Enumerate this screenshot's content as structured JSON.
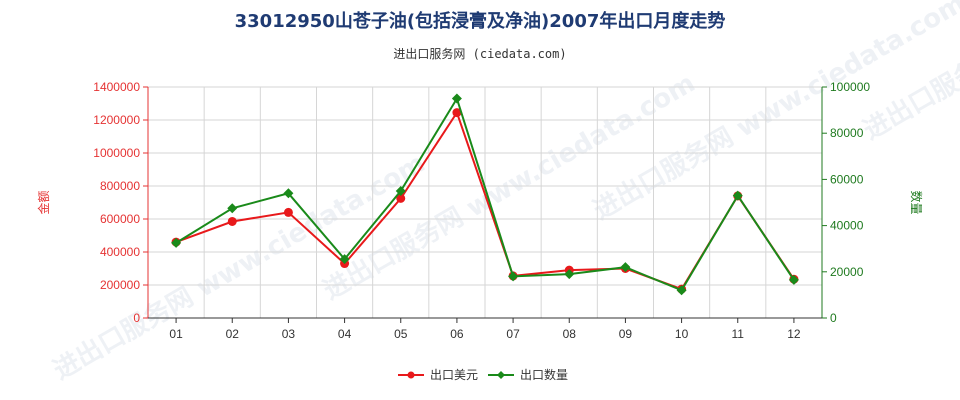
{
  "chart_data": {
    "type": "line",
    "title": "33012950山苍子油(包括浸膏及净油)2007年出口月度走势",
    "subtitle": "进出口服务网 (ciedata.com)",
    "watermark": "进出口服务网 www.ciedata.com",
    "categories": [
      "01",
      "02",
      "03",
      "04",
      "05",
      "06",
      "07",
      "08",
      "09",
      "10",
      "11",
      "12"
    ],
    "y_left": {
      "label": "金额",
      "min": 0,
      "max": 1400000,
      "ticks": [
        0,
        200000,
        400000,
        600000,
        800000,
        1000000,
        1200000,
        1400000
      ],
      "color": "#e53333"
    },
    "y_right": {
      "label": "数量",
      "min": 0,
      "max": 100000,
      "ticks": [
        0,
        20000,
        40000,
        60000,
        80000,
        100000
      ],
      "color": "#1f7a1f"
    },
    "grid": true,
    "legend_position": "bottom",
    "series": [
      {
        "name": "出口美元",
        "axis": "left",
        "color": "#e8191b",
        "marker": "circle",
        "values": [
          460000,
          585000,
          640000,
          330000,
          725000,
          1245000,
          255000,
          290000,
          300000,
          175000,
          740000,
          235000
        ]
      },
      {
        "name": "出口数量",
        "axis": "right",
        "color": "#1a8a1a",
        "marker": "diamond",
        "values": [
          32500,
          47500,
          54000,
          25500,
          55000,
          95000,
          18000,
          19000,
          22000,
          12000,
          53000,
          16500
        ]
      }
    ]
  }
}
